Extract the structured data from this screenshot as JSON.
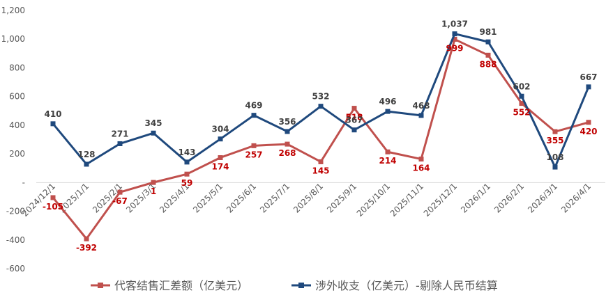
{
  "chart_data": {
    "type": "line",
    "x": [
      "2024/12/1",
      "2025/1/1",
      "2025/2/1",
      "2025/3/1",
      "2025/4/1",
      "2025/5/1",
      "2025/6/1",
      "2025/7/1",
      "2025/8/1",
      "2025/9/1",
      "2025/10/1",
      "2025/11/1",
      "2025/12/1",
      "2026/1/1",
      "2026/2/1",
      "2026/3/1",
      "2026/4/1"
    ],
    "ylim": [
      -600,
      1200
    ],
    "yticks": [
      {
        "value": -600,
        "label": "-600"
      },
      {
        "value": -400,
        "label": "-400"
      },
      {
        "value": -200,
        "label": "-200"
      },
      {
        "value": 0,
        "label": "-"
      },
      {
        "value": 200,
        "label": "200"
      },
      {
        "value": 400,
        "label": "400"
      },
      {
        "value": 600,
        "label": "600"
      },
      {
        "value": 800,
        "label": "800"
      },
      {
        "value": 1000,
        "label": "1,000"
      },
      {
        "value": 1200,
        "label": "1,200"
      }
    ],
    "legend_position": "bottom",
    "grid": false,
    "series": [
      {
        "name": "代客结售汇差额（亿美元）",
        "color": "#C0504D",
        "values": [
          -105,
          -392,
          -67,
          1,
          59,
          174,
          257,
          268,
          145,
          518,
          214,
          164,
          999,
          888,
          552,
          355,
          420
        ],
        "labels": [
          "-105",
          "-392",
          "-67",
          "1",
          "59",
          "174",
          "257",
          "268",
          "145",
          "518",
          "214",
          "164",
          "999",
          "888",
          "552",
          "355",
          "420"
        ]
      },
      {
        "name": "涉外收支（亿美元）-剔除人民币结算",
        "color": "#1F497D",
        "values": [
          410,
          128,
          271,
          345,
          143,
          304,
          469,
          356,
          532,
          367,
          496,
          468,
          1037,
          981,
          602,
          108,
          667
        ],
        "labels": [
          "410",
          "128",
          "271",
          "345",
          "143",
          "304",
          "469",
          "356",
          "532",
          "367",
          "496",
          "468",
          "1,037",
          "981",
          "602",
          "108",
          "667"
        ]
      }
    ]
  }
}
